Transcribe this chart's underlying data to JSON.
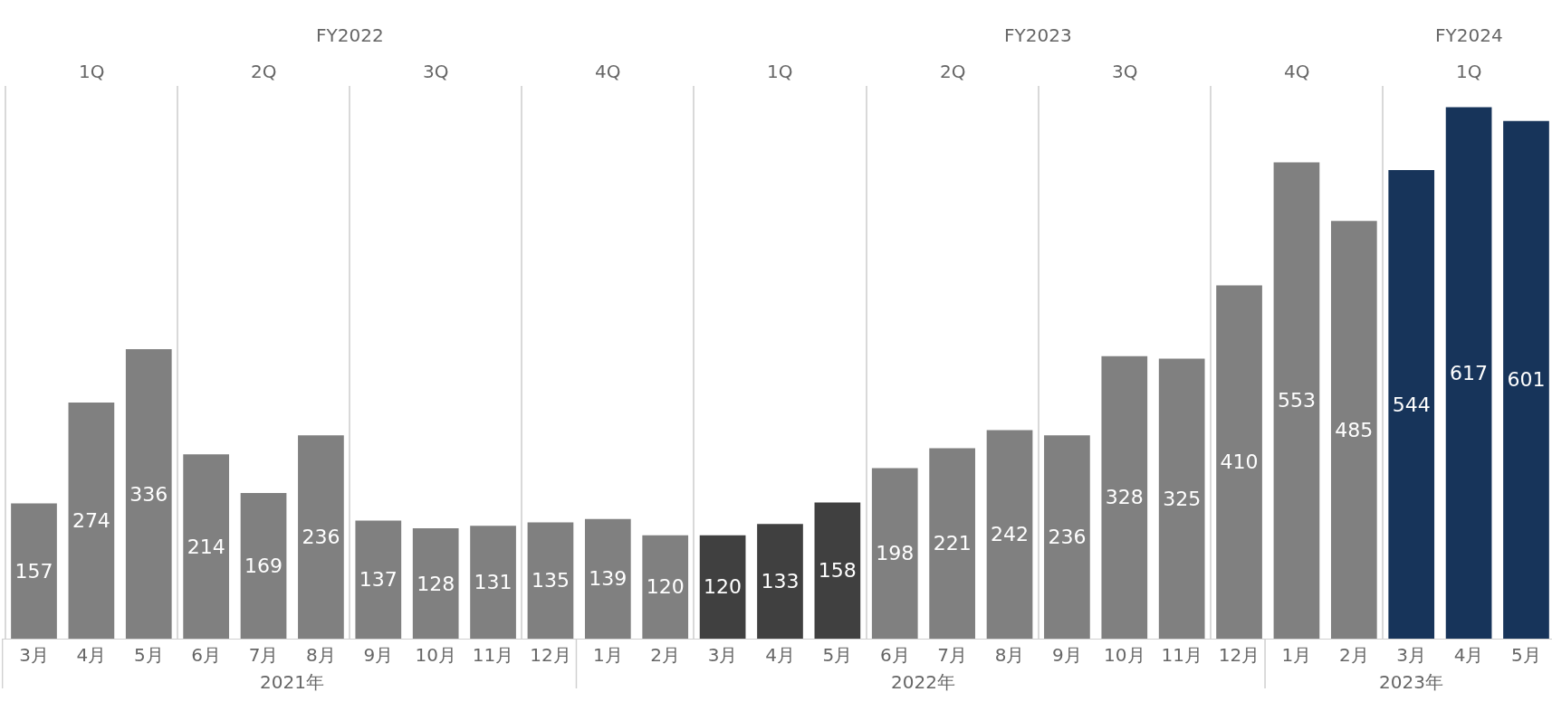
{
  "chart_data": {
    "type": "bar",
    "categories": [
      "3月",
      "4月",
      "5月",
      "6月",
      "7月",
      "8月",
      "9月",
      "10月",
      "11月",
      "12月",
      "1月",
      "2月",
      "3月",
      "4月",
      "5月",
      "6月",
      "7月",
      "8月",
      "9月",
      "10月",
      "11月",
      "12月",
      "1月",
      "2月",
      "3月",
      "4月",
      "5月"
    ],
    "values": [
      157,
      274,
      336,
      214,
      169,
      236,
      137,
      128,
      131,
      135,
      139,
      120,
      120,
      133,
      158,
      198,
      221,
      242,
      236,
      328,
      325,
      410,
      553,
      485,
      544,
      617,
      601
    ],
    "colors": [
      "#808080",
      "#808080",
      "#808080",
      "#808080",
      "#808080",
      "#808080",
      "#808080",
      "#808080",
      "#808080",
      "#808080",
      "#808080",
      "#808080",
      "#404040",
      "#404040",
      "#404040",
      "#808080",
      "#808080",
      "#808080",
      "#808080",
      "#808080",
      "#808080",
      "#808080",
      "#808080",
      "#808080",
      "#17345a",
      "#17345a",
      "#17345a"
    ],
    "data_labels": true,
    "grid": "x",
    "annotations": [
      "FY2022",
      "FY2023",
      "FY2024",
      "1Q",
      "2Q",
      "3Q",
      "4Q",
      "1Q",
      "2Q",
      "3Q",
      "4Q",
      "1Q",
      "2021年",
      "2022年",
      "2023年"
    ]
  }
}
